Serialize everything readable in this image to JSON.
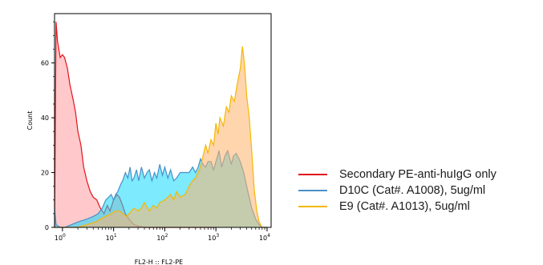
{
  "chart_data": {
    "type": "area",
    "xlabel": "FL2-H :: FL2-PE",
    "ylabel": "Count",
    "x_scale": "log",
    "xlim": [
      0.7,
      12000
    ],
    "ylim": [
      0,
      78
    ],
    "x_ticks": [
      {
        "value": 1,
        "base": "10",
        "exp": "0"
      },
      {
        "value": 10,
        "base": "10",
        "exp": "1"
      },
      {
        "value": 100,
        "base": "10",
        "exp": "2"
      },
      {
        "value": 1000,
        "base": "10",
        "exp": "3"
      },
      {
        "value": 10000,
        "base": "10",
        "exp": "4"
      }
    ],
    "y_ticks": [
      0,
      20,
      40,
      60
    ],
    "legend_position": "right",
    "series": [
      {
        "name": "Secondary PE-anti-huIgG only",
        "line_color": "#e0141b",
        "fill_color": "#ff9a9e",
        "x": [
          0.7,
          0.75,
          0.8,
          0.9,
          1.0,
          1.1,
          1.25,
          1.4,
          1.6,
          1.8,
          2.0,
          2.3,
          2.6,
          3.0,
          3.5,
          4.0,
          4.7,
          5.5,
          6.5,
          7.5,
          8.5,
          10,
          11.5,
          13,
          15,
          17,
          20,
          25,
          30,
          40,
          60,
          100,
          200,
          1000
        ],
        "values": [
          0,
          75,
          68,
          62,
          63,
          62,
          58,
          52,
          47,
          42,
          35,
          30,
          22,
          17,
          13,
          11,
          10,
          7,
          5,
          8,
          6,
          10,
          12,
          11,
          8,
          5,
          3,
          1,
          0.5,
          0,
          0,
          0,
          0,
          0
        ]
      },
      {
        "name": "D10C (Cat#. A1008), 5ug/ml",
        "line_color": "#4a8fc7",
        "fill_color": "#12d8fb",
        "x": [
          0.7,
          0.75,
          0.9,
          1.1,
          1.5,
          2.0,
          3.0,
          4.0,
          5.0,
          6.0,
          7.0,
          8.0,
          9.0,
          10,
          11,
          12,
          14,
          15,
          17,
          19,
          21,
          23,
          25,
          28,
          31,
          35,
          40,
          45,
          50,
          56,
          63,
          70,
          80,
          90,
          100,
          115,
          130,
          150,
          170,
          200,
          250,
          300,
          350,
          400,
          450,
          500,
          560,
          630,
          700,
          800,
          900,
          1000,
          1150,
          1300,
          1500,
          1700,
          2000,
          2200,
          2500,
          3000,
          3500,
          4000,
          5000,
          6000,
          7000,
          8000,
          10000
        ],
        "values": [
          7,
          1,
          0,
          0,
          1,
          2,
          3,
          4,
          5,
          7,
          10,
          11,
          12,
          10,
          12,
          13,
          16,
          17,
          20,
          18,
          22,
          17,
          18,
          21,
          17,
          22,
          18,
          20,
          21,
          17,
          20,
          18,
          23,
          19,
          22,
          18,
          21,
          17,
          18,
          20,
          20,
          20,
          22,
          20,
          22,
          25,
          23,
          22,
          24,
          24,
          21,
          24,
          28,
          22,
          26,
          28,
          23,
          26,
          27,
          24,
          20,
          15,
          7,
          3,
          1,
          0,
          0
        ]
      },
      {
        "name": "E9 (Cat#. A1013), 5ug/ml",
        "line_color": "#f5b800",
        "fill_color": "#ffb36b",
        "x": [
          0.7,
          1.0,
          2.0,
          3.0,
          4.5,
          5.5,
          7.0,
          9.0,
          11,
          13,
          15,
          18,
          20,
          25,
          30,
          35,
          40,
          50,
          60,
          70,
          80,
          100,
          115,
          130,
          150,
          170,
          200,
          250,
          300,
          350,
          400,
          450,
          500,
          560,
          630,
          700,
          800,
          900,
          1000,
          1100,
          1200,
          1400,
          1600,
          1800,
          2000,
          2300,
          2600,
          3000,
          3300,
          3600,
          4000,
          4500,
          5000,
          5600,
          6300,
          7000,
          8000,
          10000
        ],
        "values": [
          0,
          0,
          0,
          1,
          2,
          3,
          4,
          5,
          6,
          6,
          5,
          4,
          5,
          7,
          6,
          7,
          9,
          6,
          8,
          7,
          9,
          10,
          11,
          12,
          10,
          13,
          11,
          12,
          15,
          17,
          18,
          20,
          22,
          26,
          30,
          27,
          32,
          30,
          38,
          34,
          40,
          37,
          44,
          42,
          48,
          46,
          52,
          58,
          66,
          60,
          48,
          40,
          28,
          14,
          6,
          2,
          0,
          0
        ]
      }
    ]
  }
}
